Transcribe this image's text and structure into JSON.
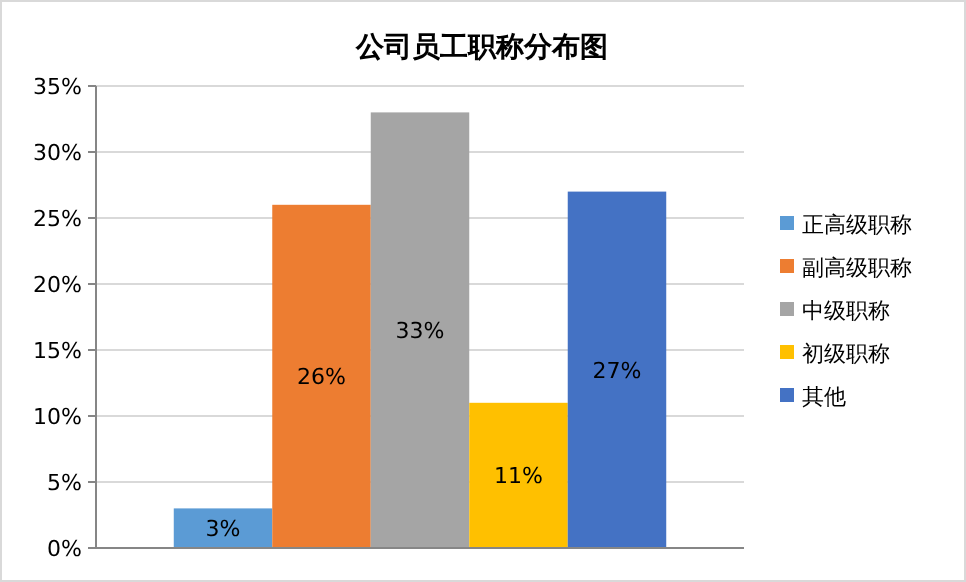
{
  "chart_data": {
    "type": "bar",
    "title": "公司员工职称分布图",
    "categories": [
      null
    ],
    "series": [
      {
        "name": "正高级职称",
        "color": "#5b9bd5",
        "values": [
          3
        ],
        "value_labels": [
          "3%"
        ]
      },
      {
        "name": "副高级职称",
        "color": "#ed7d31",
        "values": [
          26
        ],
        "value_labels": [
          "26%"
        ]
      },
      {
        "name": "中级职称",
        "color": "#a5a5a5",
        "values": [
          33
        ],
        "value_labels": [
          "33%"
        ]
      },
      {
        "name": "初级职称",
        "color": "#ffc000",
        "values": [
          11
        ],
        "value_labels": [
          "11%"
        ]
      },
      {
        "name": "其他",
        "color": "#4472c4",
        "values": [
          27
        ],
        "value_labels": [
          "27%"
        ]
      }
    ],
    "ylim": [
      0,
      35
    ],
    "yticks": [
      {
        "value": 0,
        "label": "0%"
      },
      {
        "value": 5,
        "label": "5%"
      },
      {
        "value": 10,
        "label": "10%"
      },
      {
        "value": 15,
        "label": "15%"
      },
      {
        "value": 20,
        "label": "20%"
      },
      {
        "value": 25,
        "label": "25%"
      },
      {
        "value": 30,
        "label": "30%"
      },
      {
        "value": 35,
        "label": "35%"
      }
    ],
    "grid": "y",
    "legend": "right"
  }
}
